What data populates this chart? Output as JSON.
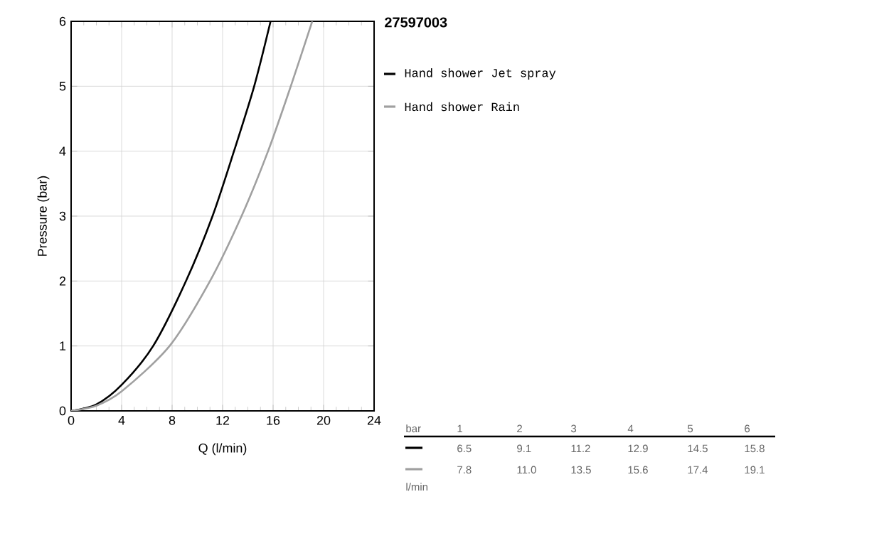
{
  "chart_data": {
    "type": "line",
    "title": "27597003",
    "xlabel": "Q (l/min)",
    "ylabel": "Pressure (bar)",
    "xlim": [
      0,
      24
    ],
    "ylim": [
      0,
      6
    ],
    "xticks": [
      0,
      4,
      8,
      12,
      16,
      20,
      24
    ],
    "yticks": [
      0,
      1,
      2,
      3,
      4,
      5,
      6
    ],
    "grid": true,
    "legend": "top right",
    "marker": "none",
    "line_style": "solid",
    "annotations": [
      "bar",
      "1",
      "2",
      "3",
      "4",
      "5",
      "6",
      "6.5",
      "9.1",
      "11.2",
      "12.9",
      "14.5",
      "15.8",
      "7.8",
      "11.0",
      "13.5",
      "15.6",
      "17.4",
      "19.1",
      "l/min"
    ],
    "series": [
      {
        "name": "Hand shower Jet spray",
        "color": "#000000",
        "x": [
          0,
          2,
          4,
          6.5,
          9.1,
          11.2,
          12.9,
          14.5,
          15.8
        ],
        "values": [
          0,
          0.1,
          0.4,
          1,
          2,
          3,
          4,
          5,
          6
        ]
      },
      {
        "name": "Hand shower Rain",
        "color": "#a0a0a0",
        "x": [
          0,
          2,
          4,
          7.8,
          11.0,
          13.5,
          15.6,
          17.4,
          19.1
        ],
        "values": [
          0,
          0.08,
          0.3,
          1,
          2,
          3,
          4,
          5,
          6
        ]
      }
    ]
  }
}
